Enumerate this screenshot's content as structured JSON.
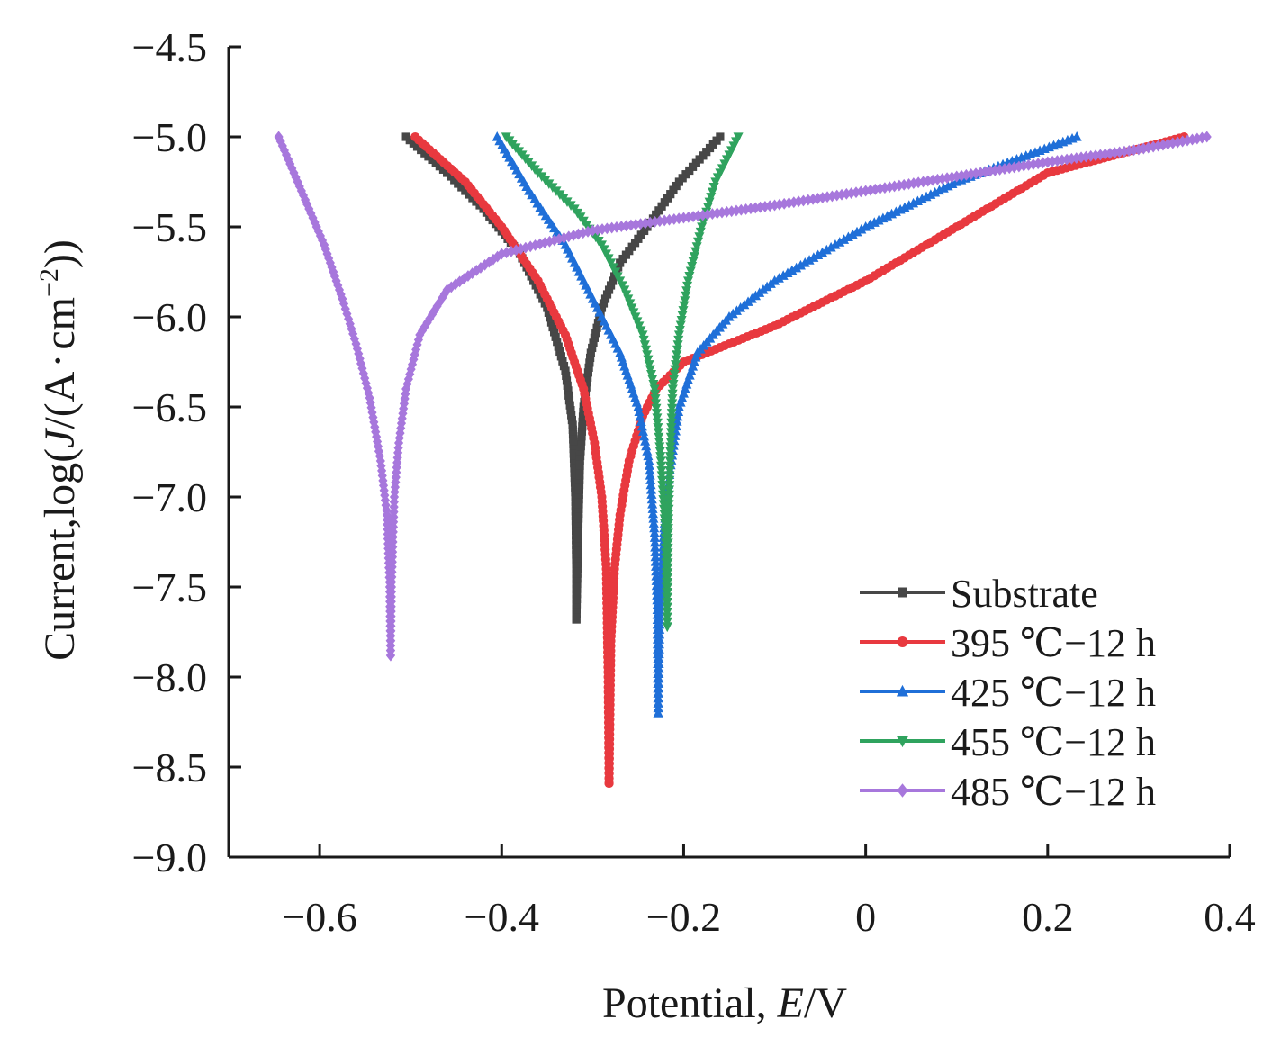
{
  "chart_data": {
    "type": "line",
    "title": "",
    "xlabel": "Potential, E/V",
    "xlabel_parts": [
      "Potential, ",
      "E",
      "/V"
    ],
    "ylabel": "Current,log(J/(A·cm⁻²))",
    "ylabel_parts": [
      "Current,log(",
      "J",
      "/(A",
      "·",
      "cm",
      "−2",
      "))"
    ],
    "xlim": [
      -0.7,
      0.4
    ],
    "ylim": [
      -9.0,
      -4.5
    ],
    "xticks": [
      -0.6,
      -0.4,
      -0.2,
      0,
      0.2,
      0.4
    ],
    "xtick_labels": [
      "−0.6",
      "−0.4",
      "−0.2",
      "0",
      "0.2",
      "0.4"
    ],
    "yticks": [
      -4.5,
      -5.0,
      -5.5,
      -6.0,
      -6.5,
      -7.0,
      -7.5,
      -8.0,
      -8.5,
      -9.0
    ],
    "ytick_labels": [
      "−4.5",
      "−5.0",
      "−5.5",
      "−6.0",
      "−6.5",
      "−7.0",
      "−7.5",
      "−8.0",
      "−8.5",
      "−9.0"
    ],
    "grid": false,
    "legend_position": "bottom-right",
    "series": [
      {
        "name": "Substrate",
        "color": "#474747",
        "marker": "square",
        "cathodic": [
          [
            -0.505,
            -5.0
          ],
          [
            -0.46,
            -5.2
          ],
          [
            -0.42,
            -5.4
          ],
          [
            -0.38,
            -5.65
          ],
          [
            -0.35,
            -5.95
          ],
          [
            -0.33,
            -6.3
          ],
          [
            -0.322,
            -6.6
          ],
          [
            -0.319,
            -7.0
          ],
          [
            -0.318,
            -7.4
          ],
          [
            -0.318,
            -7.68
          ]
        ],
        "anodic": [
          [
            -0.318,
            -7.68
          ],
          [
            -0.316,
            -7.2
          ],
          [
            -0.314,
            -6.8
          ],
          [
            -0.31,
            -6.5
          ],
          [
            -0.302,
            -6.2
          ],
          [
            -0.29,
            -5.95
          ],
          [
            -0.27,
            -5.7
          ],
          [
            -0.24,
            -5.5
          ],
          [
            -0.205,
            -5.25
          ],
          [
            -0.16,
            -5.0
          ]
        ]
      },
      {
        "name": "395 ℃−12 h",
        "color": "#e8393f",
        "marker": "circle",
        "cathodic": [
          [
            -0.495,
            -5.0
          ],
          [
            -0.44,
            -5.25
          ],
          [
            -0.4,
            -5.5
          ],
          [
            -0.36,
            -5.8
          ],
          [
            -0.33,
            -6.1
          ],
          [
            -0.31,
            -6.4
          ],
          [
            -0.298,
            -6.7
          ],
          [
            -0.29,
            -7.0
          ],
          [
            -0.285,
            -7.4
          ],
          [
            -0.283,
            -8.0
          ],
          [
            -0.282,
            -8.59
          ]
        ],
        "anodic": [
          [
            -0.282,
            -8.59
          ],
          [
            -0.28,
            -7.8
          ],
          [
            -0.276,
            -7.4
          ],
          [
            -0.27,
            -7.1
          ],
          [
            -0.26,
            -6.8
          ],
          [
            -0.245,
            -6.55
          ],
          [
            -0.23,
            -6.4
          ],
          [
            -0.2,
            -6.25
          ],
          [
            -0.1,
            -6.05
          ],
          [
            0.0,
            -5.8
          ],
          [
            0.1,
            -5.5
          ],
          [
            0.2,
            -5.2
          ],
          [
            0.35,
            -5.0
          ]
        ]
      },
      {
        "name": "425 ℃−12 h",
        "color": "#1f6fd8",
        "marker": "triangle-up",
        "cathodic": [
          [
            -0.405,
            -5.0
          ],
          [
            -0.37,
            -5.3
          ],
          [
            -0.33,
            -5.6
          ],
          [
            -0.3,
            -5.9
          ],
          [
            -0.27,
            -6.2
          ],
          [
            -0.25,
            -6.5
          ],
          [
            -0.238,
            -6.8
          ],
          [
            -0.232,
            -7.2
          ],
          [
            -0.229,
            -7.6
          ],
          [
            -0.228,
            -8.2
          ]
        ],
        "anodic": [
          [
            -0.228,
            -8.2
          ],
          [
            -0.226,
            -7.6
          ],
          [
            -0.222,
            -7.2
          ],
          [
            -0.215,
            -6.85
          ],
          [
            -0.205,
            -6.5
          ],
          [
            -0.185,
            -6.2
          ],
          [
            -0.15,
            -6.0
          ],
          [
            -0.1,
            -5.8
          ],
          [
            0.0,
            -5.5
          ],
          [
            0.1,
            -5.25
          ],
          [
            0.232,
            -5.0
          ]
        ]
      },
      {
        "name": "455 ℃−12 h",
        "color": "#2fa35e",
        "marker": "triangle-down",
        "cathodic": [
          [
            -0.395,
            -5.0
          ],
          [
            -0.36,
            -5.2
          ],
          [
            -0.32,
            -5.4
          ],
          [
            -0.29,
            -5.6
          ],
          [
            -0.265,
            -5.85
          ],
          [
            -0.245,
            -6.1
          ],
          [
            -0.232,
            -6.4
          ],
          [
            -0.225,
            -6.8
          ],
          [
            -0.22,
            -7.2
          ],
          [
            -0.218,
            -7.72
          ]
        ],
        "anodic": [
          [
            -0.218,
            -7.72
          ],
          [
            -0.217,
            -7.2
          ],
          [
            -0.215,
            -6.8
          ],
          [
            -0.212,
            -6.4
          ],
          [
            -0.205,
            -6.1
          ],
          [
            -0.195,
            -5.8
          ],
          [
            -0.18,
            -5.5
          ],
          [
            -0.165,
            -5.25
          ],
          [
            -0.14,
            -5.0
          ]
        ]
      },
      {
        "name": "485 ℃−12 h",
        "color": "#a777dc",
        "marker": "diamond",
        "cathodic": [
          [
            -0.645,
            -5.0
          ],
          [
            -0.62,
            -5.3
          ],
          [
            -0.595,
            -5.6
          ],
          [
            -0.575,
            -5.9
          ],
          [
            -0.56,
            -6.15
          ],
          [
            -0.545,
            -6.45
          ],
          [
            -0.533,
            -6.8
          ],
          [
            -0.526,
            -7.1
          ],
          [
            -0.523,
            -7.5
          ],
          [
            -0.522,
            -7.88
          ]
        ],
        "anodic": [
          [
            -0.522,
            -7.88
          ],
          [
            -0.521,
            -7.5
          ],
          [
            -0.518,
            -7.0
          ],
          [
            -0.513,
            -6.7
          ],
          [
            -0.505,
            -6.4
          ],
          [
            -0.49,
            -6.1
          ],
          [
            -0.46,
            -5.85
          ],
          [
            -0.4,
            -5.65
          ],
          [
            -0.3,
            -5.52
          ],
          [
            -0.2,
            -5.45
          ],
          [
            -0.1,
            -5.38
          ],
          [
            0.0,
            -5.3
          ],
          [
            0.1,
            -5.22
          ],
          [
            0.2,
            -5.14
          ],
          [
            0.3,
            -5.07
          ],
          [
            0.375,
            -5.0
          ]
        ]
      }
    ]
  }
}
